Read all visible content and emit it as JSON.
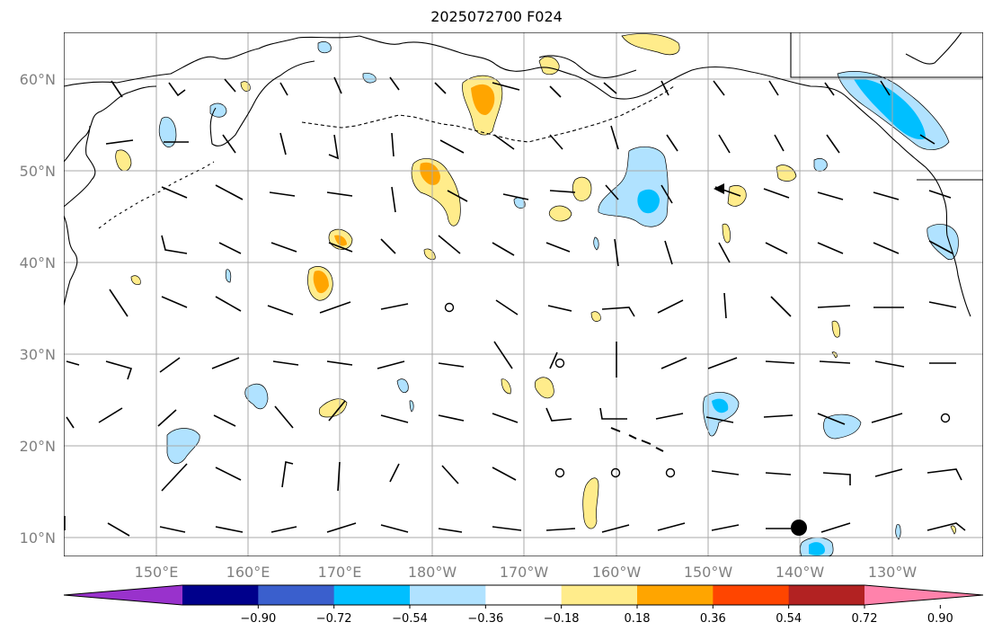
{
  "title": "2025072700 F024",
  "lat_labels": [
    "60°N",
    "50°N",
    "40°N",
    "30°N",
    "20°N",
    "10°N"
  ],
  "lon_labels": [
    "150°E",
    "160°E",
    "170°E",
    "180°W",
    "170°W",
    "160°W",
    "150°W",
    "140°W",
    "130°W"
  ],
  "colorbar": {
    "colors": [
      "#9932cc",
      "#00008b",
      "#3a5fcd",
      "#00bfff",
      "#b0e2ff",
      "#ffffff",
      "#ffec8b",
      "#ffa500",
      "#ff4500",
      "#b22222",
      "#ff82ab"
    ],
    "tick_labels": [
      "−0.90",
      "−0.72",
      "−0.54",
      "−0.36",
      "−0.18",
      "0.18",
      "0.36",
      "0.54",
      "0.72",
      "0.90"
    ]
  }
}
